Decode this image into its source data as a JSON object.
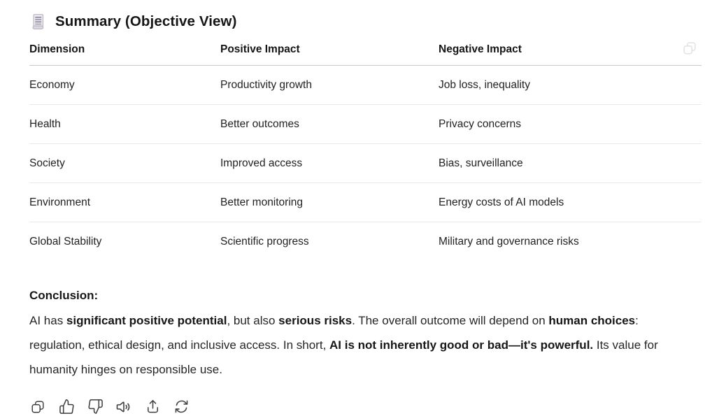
{
  "message": {
    "title": "Summary (Objective View)",
    "title_icon": "scroll-emoji"
  },
  "table": {
    "columns": [
      "Dimension",
      "Positive Impact",
      "Negative Impact"
    ],
    "rows": [
      [
        "Economy",
        "Productivity growth",
        "Job loss, inequality"
      ],
      [
        "Health",
        "Better outcomes",
        "Privacy concerns"
      ],
      [
        "Society",
        "Improved access",
        "Bias, surveillance"
      ],
      [
        "Environment",
        "Better monitoring",
        "Energy costs of AI models"
      ],
      [
        "Global Stability",
        "Scientific progress",
        "Military and governance risks"
      ]
    ],
    "copy_icon": "copy-icon"
  },
  "conclusion": {
    "heading": "Conclusion:",
    "segments": [
      {
        "text": "AI has ",
        "bold": false
      },
      {
        "text": "significant positive potential",
        "bold": true
      },
      {
        "text": ", but also ",
        "bold": false
      },
      {
        "text": "serious risks",
        "bold": true
      },
      {
        "text": ". The overall outcome will depend on ",
        "bold": false
      },
      {
        "text": "human choices",
        "bold": true
      },
      {
        "text": ": regulation, ethical design, and inclusive access. In short, ",
        "bold": false
      },
      {
        "text": "AI is not inherently good or bad—it's powerful.",
        "bold": true
      },
      {
        "text": " Its value for humanity hinges on responsible use.",
        "bold": false
      }
    ]
  },
  "actions": [
    {
      "name": "copy",
      "icon": "copy-icon"
    },
    {
      "name": "thumbs-up",
      "icon": "thumbs-up-icon"
    },
    {
      "name": "thumbs-down",
      "icon": "thumbs-down-icon"
    },
    {
      "name": "read-aloud",
      "icon": "speaker-icon"
    },
    {
      "name": "share",
      "icon": "share-icon"
    },
    {
      "name": "regenerate",
      "icon": "refresh-icon"
    }
  ],
  "colors": {
    "text": "#1a1a1a",
    "header_border": "#c9c9c9",
    "row_border": "#e9e9e9",
    "action_icon": "#3f3f3f",
    "table_copy_icon": "#e3e3e3",
    "background": "#ffffff"
  }
}
